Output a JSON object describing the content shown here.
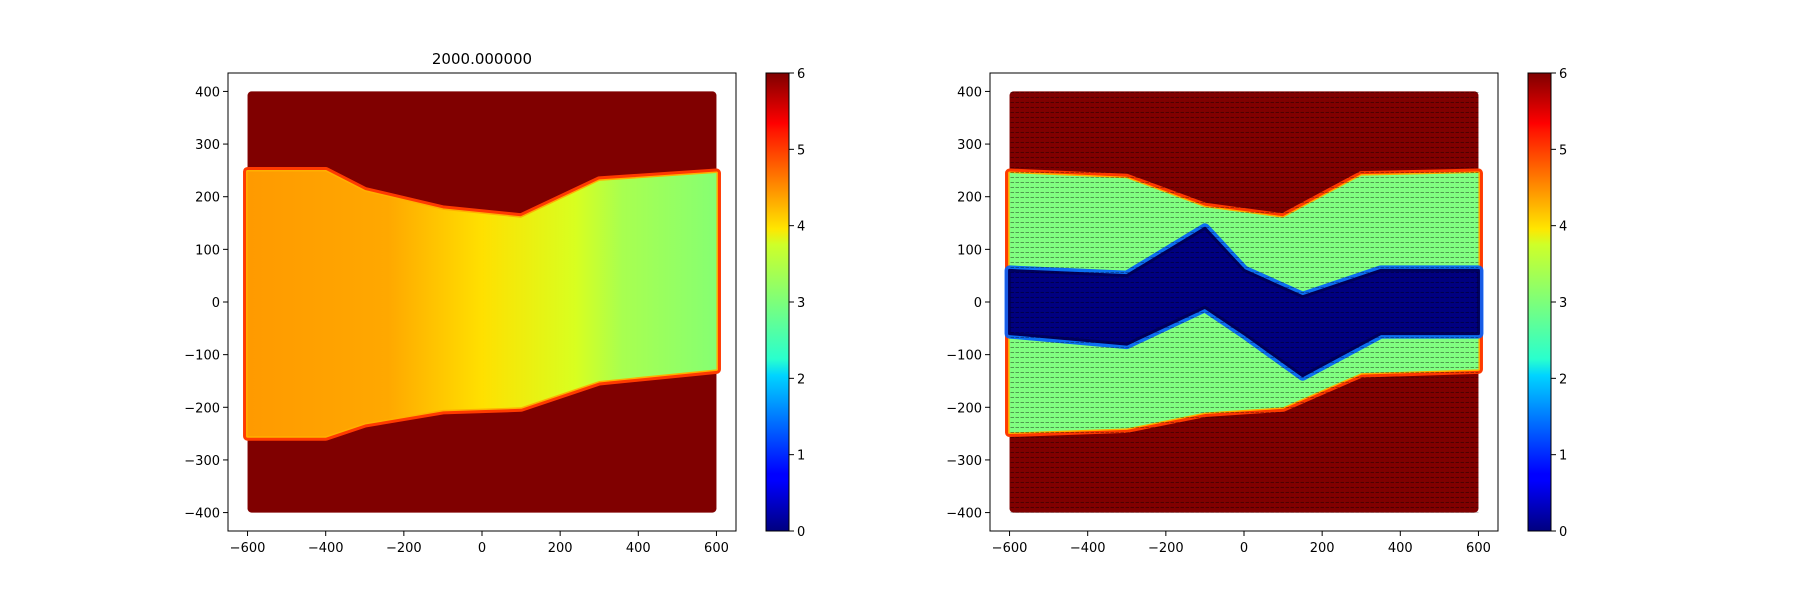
{
  "chart_data": [
    {
      "type": "heatmap",
      "title": "2000.000000",
      "xlabel": "",
      "ylabel": "",
      "xlim": [
        -650,
        650
      ],
      "ylim": [
        -435,
        435
      ],
      "xticks": [
        -600,
        -400,
        -200,
        0,
        200,
        400,
        600
      ],
      "yticks": [
        -400,
        -300,
        -200,
        -100,
        0,
        100,
        200,
        300,
        400
      ],
      "colormap": "jet",
      "colorbar": {
        "range": [
          0,
          6
        ],
        "ticks": [
          0,
          1,
          2,
          3,
          4,
          5,
          6
        ]
      },
      "domain": {
        "x": [
          -600,
          600
        ],
        "y": [
          -400,
          400
        ]
      },
      "channel": {
        "upper_wall_y": [
          [
            -600,
            248
          ],
          [
            -400,
            248
          ],
          [
            -300,
            210
          ],
          [
            -100,
            175
          ],
          [
            100,
            160
          ],
          [
            300,
            230
          ],
          [
            600,
            245
          ]
        ],
        "lower_wall_y": [
          [
            -600,
            -255
          ],
          [
            -400,
            -255
          ],
          [
            -300,
            -230
          ],
          [
            -100,
            -205
          ],
          [
            100,
            -200
          ],
          [
            300,
            -150
          ],
          [
            600,
            -128
          ]
        ]
      },
      "field_samples": [
        {
          "x": -500,
          "y": 0,
          "value": 4.8
        },
        {
          "x": -200,
          "y": 0,
          "value": 4.5
        },
        {
          "x": 0,
          "y": 0,
          "value": 4.0
        },
        {
          "x": 200,
          "y": 0,
          "value": 3.6
        },
        {
          "x": 450,
          "y": 0,
          "value": 3.1
        }
      ],
      "wall_value": 6
    },
    {
      "type": "heatmap",
      "title": "",
      "xlabel": "",
      "ylabel": "",
      "xlim": [
        -650,
        650
      ],
      "ylim": [
        -435,
        435
      ],
      "xticks": [
        -600,
        -400,
        -200,
        0,
        200,
        400,
        600
      ],
      "yticks": [
        -400,
        -300,
        -200,
        -100,
        0,
        100,
        200,
        300,
        400
      ],
      "colormap": "jet",
      "colorbar": {
        "range": [
          0,
          6
        ],
        "ticks": [
          0,
          1,
          2,
          3,
          4,
          5,
          6
        ]
      },
      "domain": {
        "x": [
          -600,
          600
        ],
        "y": [
          -400,
          400
        ]
      },
      "channel": {
        "upper_wall_y": [
          [
            -600,
            245
          ],
          [
            -300,
            235
          ],
          [
            -100,
            180
          ],
          [
            100,
            160
          ],
          [
            300,
            240
          ],
          [
            600,
            245
          ]
        ],
        "lower_wall_y": [
          [
            -600,
            -248
          ],
          [
            -300,
            -240
          ],
          [
            -100,
            -210
          ],
          [
            100,
            -200
          ],
          [
            300,
            -135
          ],
          [
            600,
            -128
          ]
        ]
      },
      "core_band": [
        [
          -600,
          60,
          -60
        ],
        [
          -300,
          50,
          -80
        ],
        [
          -100,
          140,
          -10
        ],
        [
          0,
          60,
          -60
        ],
        [
          150,
          10,
          -140
        ],
        [
          350,
          60,
          -60
        ],
        [
          600,
          60,
          -60
        ]
      ],
      "field_values": {
        "flow": 3.0,
        "core": 0.0,
        "wall": 6
      },
      "vector_overlay": true
    }
  ]
}
